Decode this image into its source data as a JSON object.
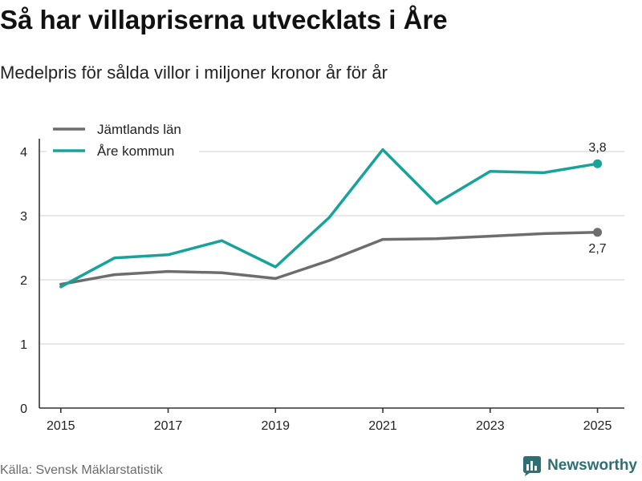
{
  "header": {
    "title": "Så har villapriserna utvecklats i Åre",
    "subtitle": "Medelpris för sålda villor i miljoner kronor år för år"
  },
  "footer": {
    "source": "Källa: Svensk Mäklarstatistik",
    "brand": "Newsworthy"
  },
  "colors": {
    "jamtland": "#6d6d6d",
    "are": "#17a39a",
    "grid": "#d9d9d9",
    "axis": "#333333",
    "brand": "#2f6f73"
  },
  "chart_data": {
    "type": "line",
    "title": "Så har villapriserna utvecklats i Åre",
    "subtitle": "Medelpris för sålda villor i miljoner kronor år för år",
    "xlabel": "",
    "ylabel": "",
    "x": [
      2015,
      2016,
      2017,
      2018,
      2019,
      2020,
      2021,
      2022,
      2023,
      2024,
      2025
    ],
    "xticks": [
      2015,
      2017,
      2019,
      2021,
      2023,
      2025
    ],
    "yticks": [
      0,
      1,
      2,
      3,
      4
    ],
    "xlim": [
      2014.6,
      2025.5
    ],
    "ylim": [
      0,
      4.1
    ],
    "grid": true,
    "legend": "top-left",
    "series": [
      {
        "name": "Jämtlands län",
        "color": "#6d6d6d",
        "values": [
          1.93,
          2.08,
          2.13,
          2.11,
          2.02,
          2.3,
          2.63,
          2.64,
          2.68,
          2.72,
          2.74
        ],
        "end_label": "2,7"
      },
      {
        "name": "Åre kommun",
        "color": "#17a39a",
        "values": [
          1.89,
          2.34,
          2.39,
          2.61,
          2.2,
          2.97,
          4.03,
          3.19,
          3.69,
          3.67,
          3.81
        ],
        "end_label": "3,8"
      }
    ]
  }
}
